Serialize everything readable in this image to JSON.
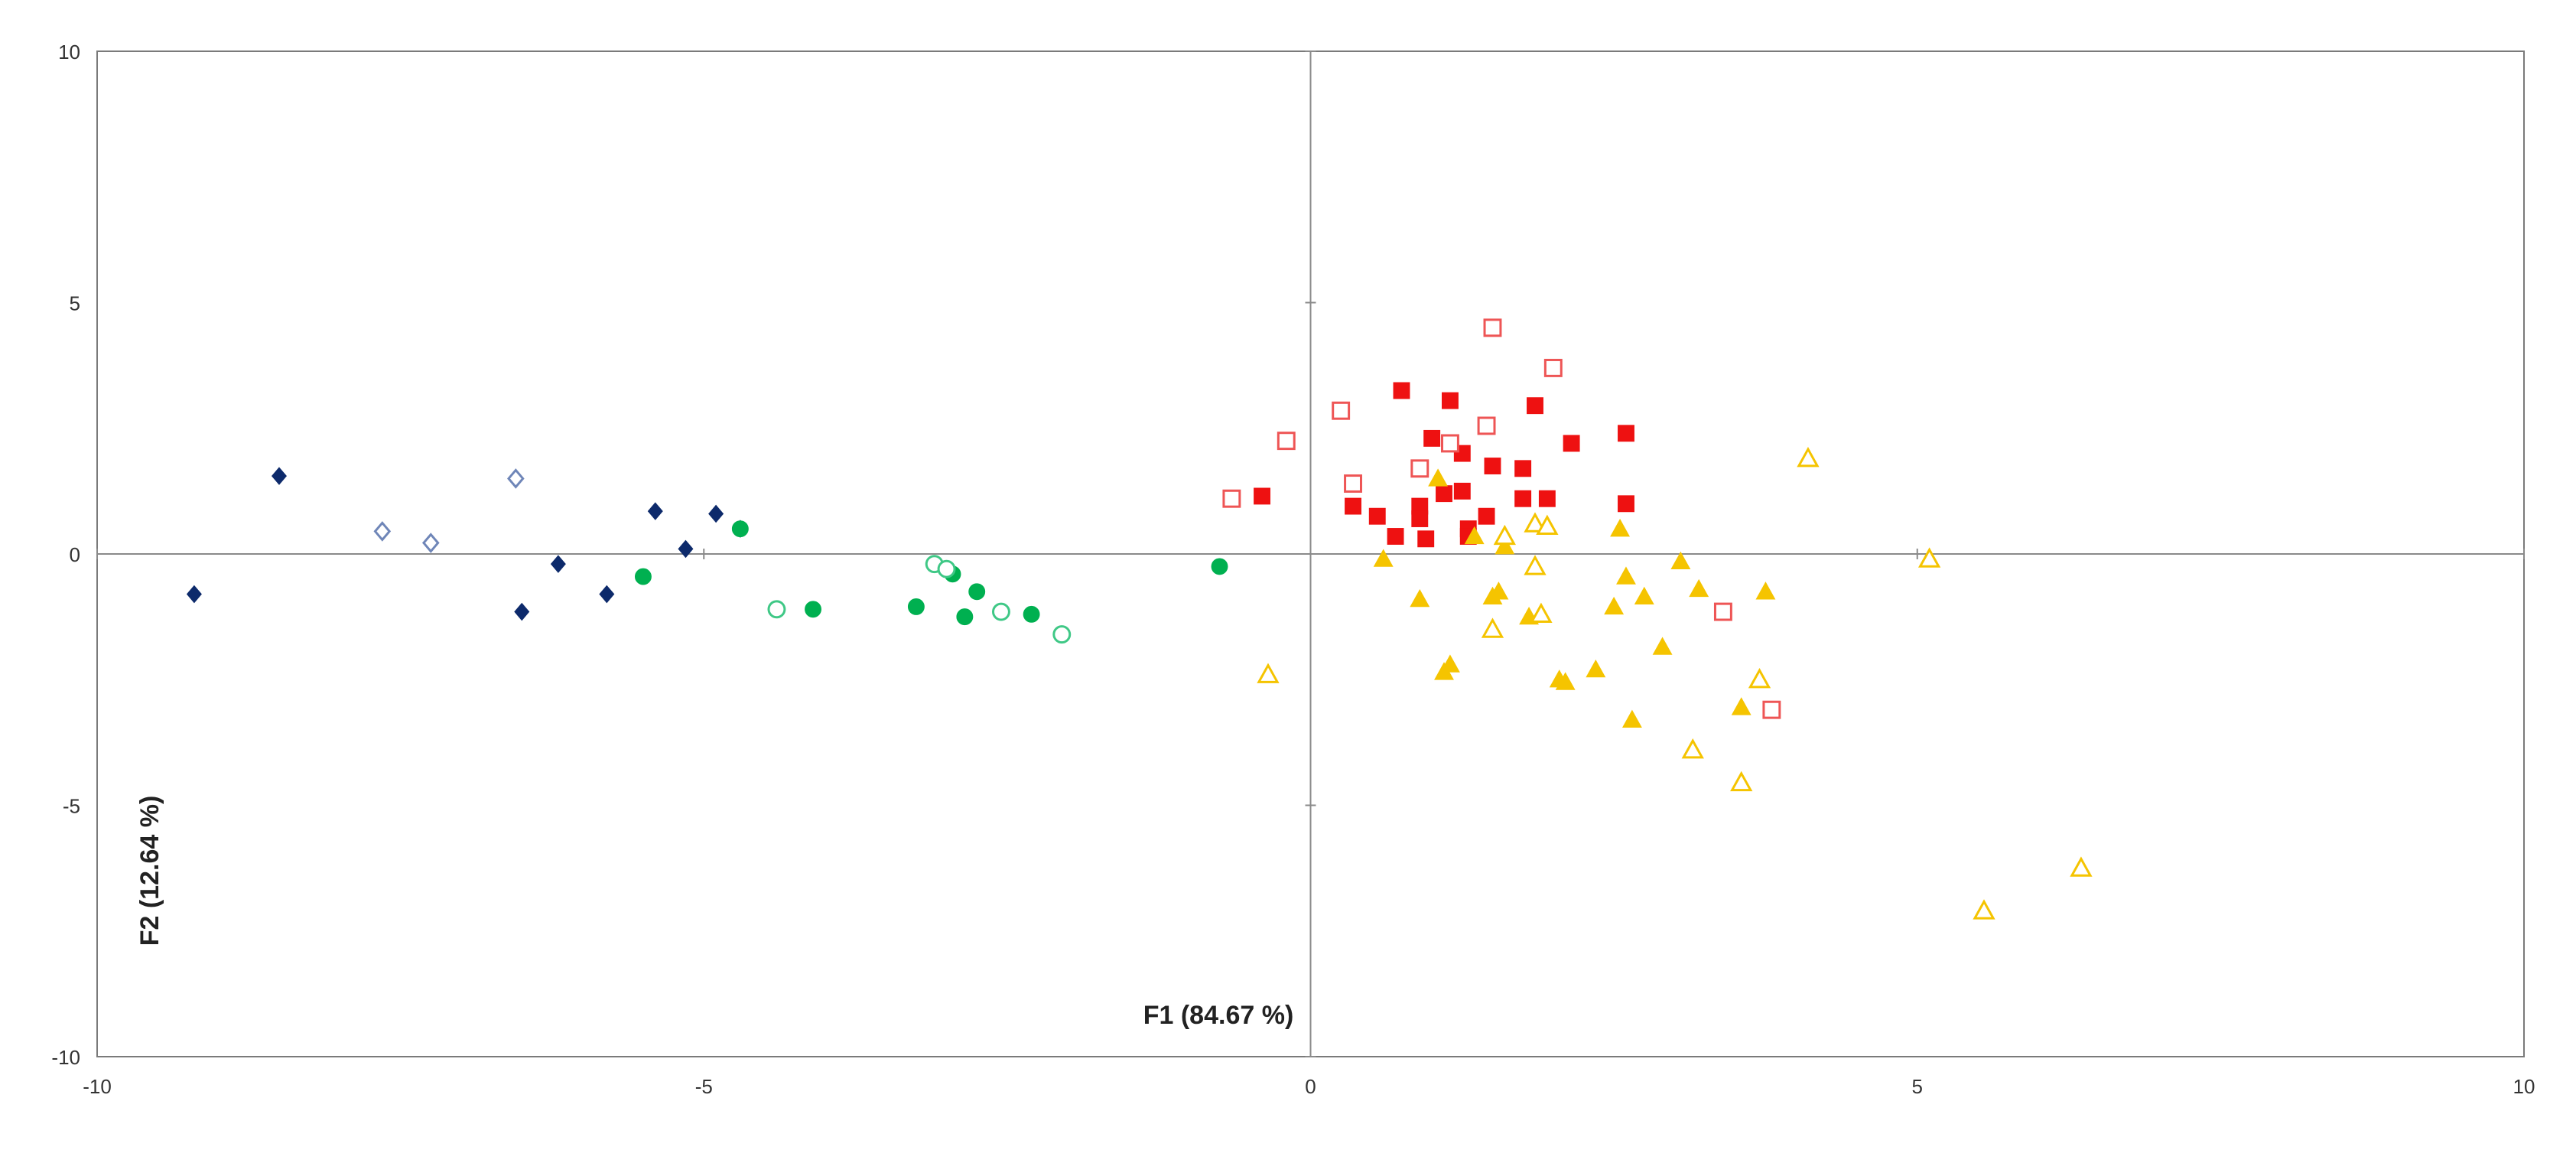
{
  "chart_data": {
    "type": "scatter",
    "title": "",
    "xlabel": "F1 (84.67 %)",
    "ylabel": "F2 (12.64 %)",
    "xlim": [
      -10,
      10
    ],
    "ylim": [
      -10,
      10
    ],
    "xticks": [
      "-10",
      "-5",
      "0",
      "5",
      "10"
    ],
    "yticks": [
      "10",
      "5",
      "0",
      "-5",
      "-10"
    ],
    "grid": false,
    "legend": "none",
    "series": [
      {
        "marker": "diamond",
        "filled": true,
        "color": "#0d2a6b",
        "points": [
          [
            -9.2,
            -0.8
          ],
          [
            -8.5,
            1.55
          ],
          [
            -6.5,
            -1.15
          ],
          [
            -6.2,
            -0.2
          ],
          [
            -5.8,
            -0.8
          ],
          [
            -5.4,
            0.85
          ],
          [
            -5.15,
            0.1
          ],
          [
            -4.9,
            0.8
          ],
          [
            -4.7,
            0.5
          ]
        ]
      },
      {
        "marker": "diamond",
        "filled": false,
        "color": "#6f86b8",
        "points": [
          [
            -7.65,
            0.45
          ],
          [
            -7.25,
            0.22
          ],
          [
            -6.55,
            1.5
          ]
        ]
      },
      {
        "marker": "circle",
        "filled": true,
        "color": "#00b050",
        "points": [
          [
            -5.5,
            -0.45
          ],
          [
            -4.7,
            0.5
          ],
          [
            -4.1,
            -1.1
          ],
          [
            -3.25,
            -1.05
          ],
          [
            -2.95,
            -0.4
          ],
          [
            -2.85,
            -1.25
          ],
          [
            -2.75,
            -0.75
          ],
          [
            -2.3,
            -1.2
          ],
          [
            -0.75,
            -0.25
          ]
        ]
      },
      {
        "marker": "circle",
        "filled": false,
        "color": "#3fc886",
        "points": [
          [
            -4.4,
            -1.1
          ],
          [
            -3.1,
            -0.2
          ],
          [
            -3.0,
            -0.3
          ],
          [
            -2.55,
            -1.15
          ],
          [
            -2.05,
            -1.6
          ]
        ]
      },
      {
        "marker": "square",
        "filled": true,
        "color": "#ee1111",
        "points": [
          [
            -0.4,
            1.15
          ],
          [
            0.35,
            0.95
          ],
          [
            0.55,
            0.75
          ],
          [
            0.7,
            0.35
          ],
          [
            0.75,
            3.25
          ],
          [
            0.9,
            0.95
          ],
          [
            0.9,
            0.7
          ],
          [
            0.95,
            0.3
          ],
          [
            1.0,
            2.3
          ],
          [
            1.1,
            1.2
          ],
          [
            1.15,
            3.05
          ],
          [
            1.25,
            2.0
          ],
          [
            1.25,
            1.25
          ],
          [
            1.3,
            0.5
          ],
          [
            1.3,
            0.35
          ],
          [
            1.45,
            0.75
          ],
          [
            1.5,
            1.75
          ],
          [
            1.75,
            1.1
          ],
          [
            1.75,
            1.7
          ],
          [
            1.85,
            2.95
          ],
          [
            1.95,
            1.1
          ],
          [
            2.15,
            2.2
          ],
          [
            2.6,
            2.4
          ],
          [
            2.6,
            1.0
          ]
        ]
      },
      {
        "marker": "square",
        "filled": false,
        "color": "#ee5555",
        "points": [
          [
            -0.65,
            1.1
          ],
          [
            -0.2,
            2.25
          ],
          [
            0.25,
            2.85
          ],
          [
            0.35,
            1.4
          ],
          [
            0.9,
            1.7
          ],
          [
            1.15,
            2.2
          ],
          [
            1.45,
            2.55
          ],
          [
            1.5,
            4.5
          ],
          [
            2.0,
            3.7
          ],
          [
            3.4,
            -1.15
          ],
          [
            3.8,
            -3.1
          ]
        ]
      },
      {
        "marker": "triangle",
        "filled": true,
        "color": "#f5c400",
        "points": [
          [
            0.6,
            -0.1
          ],
          [
            0.9,
            -0.9
          ],
          [
            1.05,
            1.5
          ],
          [
            1.1,
            -2.35
          ],
          [
            1.15,
            -2.2
          ],
          [
            1.35,
            0.35
          ],
          [
            1.5,
            -0.85
          ],
          [
            1.55,
            -0.75
          ],
          [
            1.6,
            0.15
          ],
          [
            1.8,
            -1.25
          ],
          [
            2.05,
            -2.5
          ],
          [
            2.1,
            -2.55
          ],
          [
            2.35,
            -2.3
          ],
          [
            2.5,
            -1.05
          ],
          [
            2.55,
            0.5
          ],
          [
            2.6,
            -0.45
          ],
          [
            2.65,
            -3.3
          ],
          [
            2.75,
            -0.85
          ],
          [
            2.9,
            -1.85
          ],
          [
            3.05,
            -0.15
          ],
          [
            3.2,
            -0.7
          ],
          [
            3.55,
            -3.05
          ],
          [
            3.75,
            -0.75
          ]
        ]
      },
      {
        "marker": "triangle",
        "filled": false,
        "color": "#f5c400",
        "points": [
          [
            -0.35,
            -2.4
          ],
          [
            1.6,
            0.35
          ],
          [
            1.85,
            0.6
          ],
          [
            1.85,
            -0.25
          ],
          [
            1.9,
            -1.2
          ],
          [
            1.95,
            0.55
          ],
          [
            1.5,
            -1.5
          ],
          [
            3.15,
            -3.9
          ],
          [
            3.55,
            -4.55
          ],
          [
            3.7,
            -2.5
          ],
          [
            4.1,
            1.9
          ],
          [
            5.1,
            -0.1
          ],
          [
            5.55,
            -7.1
          ],
          [
            6.35,
            -6.25
          ]
        ]
      }
    ]
  }
}
